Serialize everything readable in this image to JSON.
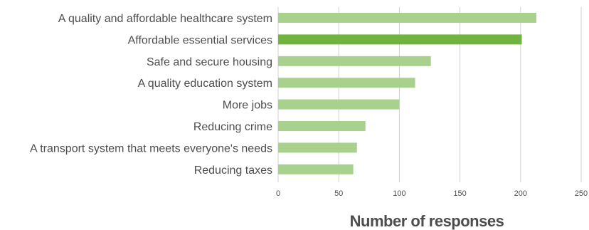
{
  "chart_data": {
    "type": "bar",
    "orientation": "horizontal",
    "title": "",
    "xlabel": "Number of responses",
    "ylabel": "",
    "categories": [
      "A quality and affordable healthcare system",
      "Affordable essential services",
      "Safe and secure housing",
      "A quality education system",
      "More jobs",
      "Reducing crime",
      "A transport system that meets everyone's needs",
      "Reducing taxes"
    ],
    "values": [
      213,
      201,
      126,
      113,
      100,
      72,
      65,
      62
    ],
    "highlight_index": 1,
    "xlim": [
      0,
      250
    ],
    "xticks": [
      0,
      50,
      100,
      150,
      200,
      250
    ],
    "grid": true,
    "legend": "none",
    "colors": {
      "bar": "#a9d18e",
      "highlight": "#70b43f",
      "grid": "#d0d0d0",
      "text": "#4d4d4d"
    }
  }
}
